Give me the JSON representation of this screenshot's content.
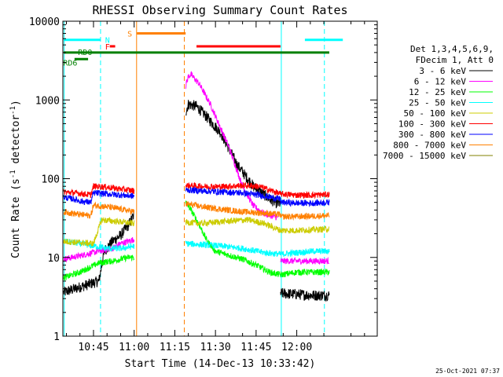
{
  "chart_data": {
    "type": "line",
    "title": "RHESSI Observing Summary Count Rates",
    "xlabel": "Start Time (14-Dec-13 10:33:42)",
    "ylabel": "Count Rate (s",
    "ylabel_sup1": "-1",
    "ylabel_mid": " detector",
    "ylabel_sup2": "-1",
    "ylabel_end": ")",
    "y_scale": "log",
    "ylim": [
      1,
      10000
    ],
    "xlim_minutes": [
      33.7,
      149.7
    ],
    "x_ticks": [
      {
        "minutes": 45,
        "label": "10:45"
      },
      {
        "minutes": 60,
        "label": "11:00"
      },
      {
        "minutes": 75,
        "label": "11:15"
      },
      {
        "minutes": 90,
        "label": "11:30"
      },
      {
        "minutes": 105,
        "label": "11:45"
      },
      {
        "minutes": 120,
        "label": "12:00"
      }
    ],
    "y_ticks": [
      {
        "value": 1,
        "label": "1"
      },
      {
        "value": 10,
        "label": "10"
      },
      {
        "value": 100,
        "label": "100"
      },
      {
        "value": 1000,
        "label": "1000"
      },
      {
        "value": 10000,
        "label": "10000"
      }
    ],
    "legend": {
      "placement": "right",
      "header": [
        "Det 1,3,4,5,6,9,",
        "FDecim 1, Att 0"
      ]
    },
    "series": [
      {
        "name": "3 - 6 keV",
        "color": "#000000",
        "segments": [
          [
            [
              34,
              3.6
            ],
            [
              40,
              4.2
            ],
            [
              47,
              5
            ],
            [
              49,
              12
            ],
            [
              52,
              16
            ],
            [
              55,
              19
            ],
            [
              58,
              26
            ],
            [
              60,
              35
            ]
          ],
          [
            [
              79,
              700
            ],
            [
              80,
              880
            ],
            [
              83,
              830
            ],
            [
              86,
              650
            ],
            [
              92,
              380
            ],
            [
              98,
              150
            ],
            [
              104,
              80
            ],
            [
              110,
              55
            ],
            [
              113,
              48
            ],
            [
              114,
              49
            ]
          ],
          [
            [
              114,
              3.5
            ],
            [
              120,
              3.4
            ],
            [
              126,
              3.3
            ],
            [
              132,
              3.3
            ]
          ]
        ]
      },
      {
        "name": "6 - 12 keV",
        "color": "#ff00ff",
        "segments": [
          [
            [
              34,
              9.5
            ],
            [
              40,
              10.5
            ],
            [
              47,
              12
            ],
            [
              52,
              13
            ],
            [
              55,
              15
            ],
            [
              58,
              16
            ],
            [
              60,
              17
            ]
          ],
          [
            [
              79,
              1500
            ],
            [
              80,
              2000
            ],
            [
              81,
              2100
            ],
            [
              84,
              1600
            ],
            [
              88,
              900
            ],
            [
              95,
              250
            ],
            [
              100,
              80
            ],
            [
              104,
              45
            ],
            [
              108,
              36
            ],
            [
              113,
              32
            ]
          ],
          [
            [
              114,
              9
            ],
            [
              120,
              9
            ],
            [
              126,
              9
            ],
            [
              132,
              9
            ]
          ]
        ]
      },
      {
        "name": "12 - 25 keV",
        "color": "#00ff00",
        "segments": [
          [
            [
              34,
              5.5
            ],
            [
              40,
              6.5
            ],
            [
              47,
              8.5
            ],
            [
              52,
              9
            ],
            [
              58,
              10
            ],
            [
              60,
              10
            ]
          ],
          [
            [
              79,
              50
            ],
            [
              81,
              40
            ],
            [
              84,
              26
            ],
            [
              87,
              16
            ],
            [
              90,
              12
            ],
            [
              100,
              9.5
            ],
            [
              105,
              8
            ],
            [
              110,
              6.5
            ],
            [
              114,
              6
            ]
          ],
          [
            [
              114,
              6
            ],
            [
              120,
              6.5
            ],
            [
              126,
              6.5
            ],
            [
              132,
              6.5
            ]
          ]
        ]
      },
      {
        "name": "25 - 50 keV",
        "color": "#00ffff",
        "segments": [
          [
            [
              34,
              16
            ],
            [
              40,
              15
            ],
            [
              45,
              14
            ],
            [
              50,
              13
            ],
            [
              55,
              13
            ],
            [
              58,
              13.5
            ],
            [
              60,
              14
            ]
          ],
          [
            [
              79,
              15
            ],
            [
              85,
              14.5
            ],
            [
              92,
              14
            ],
            [
              100,
              13
            ],
            [
              108,
              11.5
            ],
            [
              114,
              11
            ]
          ],
          [
            [
              114,
              11
            ],
            [
              120,
              11.5
            ],
            [
              126,
              12
            ],
            [
              132,
              12
            ]
          ]
        ]
      },
      {
        "name": "50 - 100 keV",
        "color": "#cccc00",
        "segments": [
          [
            [
              34,
              16
            ],
            [
              45,
              15
            ],
            [
              48,
              30
            ],
            [
              52,
              29
            ],
            [
              56,
              28
            ],
            [
              60,
              27
            ]
          ],
          [
            [
              79,
              28
            ],
            [
              85,
              27
            ],
            [
              95,
              29
            ],
            [
              102,
              30
            ],
            [
              108,
              27
            ],
            [
              114,
              22
            ]
          ],
          [
            [
              114,
              22
            ],
            [
              120,
              22
            ],
            [
              126,
              22.5
            ],
            [
              132,
              23
            ]
          ]
        ]
      },
      {
        "name": "100 - 300 keV",
        "color": "#ff0000",
        "segments": [
          [
            [
              34,
              68
            ],
            [
              40,
              65
            ],
            [
              44,
              62
            ],
            [
              45,
              80
            ],
            [
              50,
              78
            ],
            [
              55,
              74
            ],
            [
              60,
              70
            ]
          ],
          [
            [
              79,
              82
            ],
            [
              85,
              80
            ],
            [
              92,
              79
            ],
            [
              100,
              82
            ],
            [
              106,
              80
            ],
            [
              114,
              64
            ]
          ],
          [
            [
              114,
              64
            ],
            [
              120,
              62
            ],
            [
              126,
              62
            ],
            [
              132,
              63
            ]
          ]
        ]
      },
      {
        "name": "300 - 800 keV",
        "color": "#0000ff",
        "segments": [
          [
            [
              34,
              58
            ],
            [
              38,
              55
            ],
            [
              40,
              52
            ],
            [
              44,
              50
            ],
            [
              45,
              66
            ],
            [
              50,
              64
            ],
            [
              55,
              62
            ],
            [
              60,
              60
            ]
          ],
          [
            [
              79,
              72
            ],
            [
              85,
              70
            ],
            [
              92,
              68
            ],
            [
              100,
              66
            ],
            [
              106,
              62
            ],
            [
              114,
              55
            ]
          ],
          [
            [
              114,
              50
            ],
            [
              120,
              49
            ],
            [
              126,
              49
            ],
            [
              132,
              50
            ]
          ]
        ]
      },
      {
        "name": "800 - 7000 keV",
        "color": "#ff8000",
        "segments": [
          [
            [
              34,
              38
            ],
            [
              40,
              35
            ],
            [
              44,
              34
            ],
            [
              45,
              46
            ],
            [
              50,
              44
            ],
            [
              55,
              41
            ],
            [
              60,
              38
            ]
          ],
          [
            [
              79,
              48
            ],
            [
              85,
              44
            ],
            [
              92,
              41
            ],
            [
              100,
              38
            ],
            [
              106,
              37
            ],
            [
              114,
              35
            ]
          ],
          [
            [
              114,
              33
            ],
            [
              120,
              33
            ],
            [
              126,
              33.5
            ],
            [
              132,
              34
            ]
          ]
        ]
      },
      {
        "name": "7000 - 15000 keV",
        "color": "#808000",
        "segments": []
      }
    ],
    "flag_labels": {
      "saa": "S",
      "night": "N",
      "flare": "F",
      "rd0": "RD0",
      "rd6": "RD6"
    },
    "flags": [
      {
        "name": "rd0",
        "color": "#008000",
        "start": 34,
        "end": 132,
        "level": 4000
      },
      {
        "name": "rd6",
        "color": "#008000",
        "start": 38,
        "end": 43,
        "level": 3300
      },
      {
        "name": "night",
        "color": "#00ffff",
        "start": 34,
        "end": 47.5,
        "level": 5800
      },
      {
        "name": "night",
        "color": "#00ffff",
        "start": 123,
        "end": 137,
        "level": 5800
      },
      {
        "name": "saa",
        "color": "#ff8000",
        "start": 61,
        "end": 79,
        "level": 7000
      },
      {
        "name": "flare",
        "color": "#ff0000",
        "start": 51,
        "end": 53,
        "level": 4800
      },
      {
        "name": "flare",
        "color": "#ff0000",
        "start": 83,
        "end": 114,
        "level": 4800
      }
    ],
    "vlines": [
      {
        "minutes": 34.2,
        "color": "#00ffff",
        "dashed": false
      },
      {
        "minutes": 47.6,
        "color": "#00ffff",
        "dashed": true
      },
      {
        "minutes": 60.9,
        "color": "#ff8000",
        "dashed": false
      },
      {
        "minutes": 78.5,
        "color": "#ff8000",
        "dashed": true
      },
      {
        "minutes": 114.3,
        "color": "#00ffff",
        "dashed": false
      },
      {
        "minutes": 130.2,
        "color": "#00ffff",
        "dashed": true
      }
    ]
  },
  "footer": {
    "timestamp": "25-Oct-2021 07:37"
  }
}
